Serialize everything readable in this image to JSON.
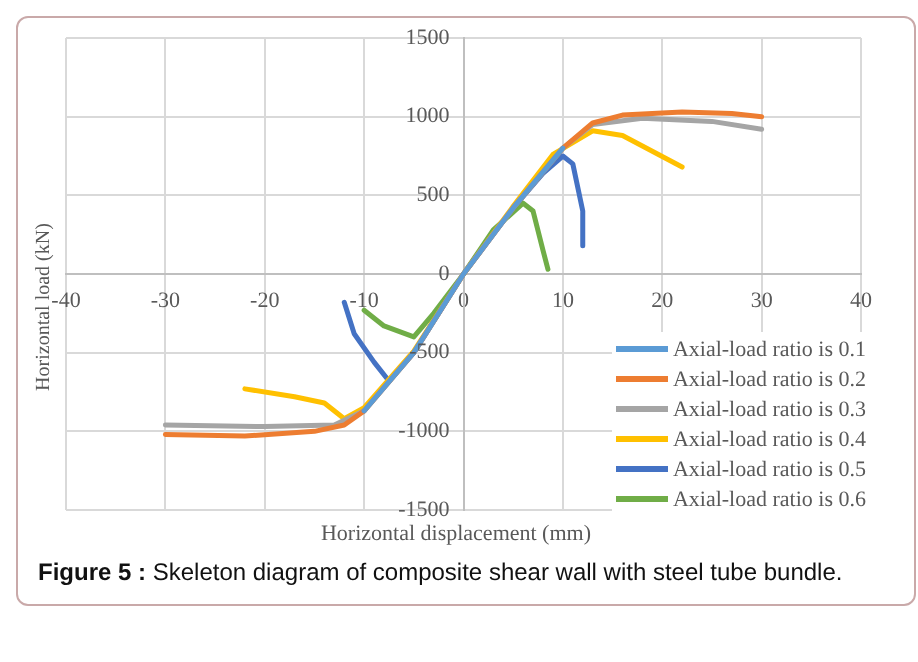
{
  "chart_data": {
    "type": "line",
    "title": "Figure 5 : Skeleton diagram of composite shear wall with steel tube bundle.",
    "xlabel": "Horizontal displacement (mm)",
    "ylabel": "Horizontal load (kN)",
    "xlim": [
      -40,
      40
    ],
    "xticks": [
      -40,
      -30,
      -20,
      -10,
      0,
      10,
      20,
      30,
      40
    ],
    "ylim": [
      -1500,
      1500
    ],
    "yticks": [
      -1500,
      -1000,
      -500,
      0,
      500,
      1000,
      1500
    ],
    "grid": true,
    "legend": "bottom right",
    "marker": "none",
    "line_style": "solid",
    "series": [
      {
        "name": "Axial-load ratio is 0.1",
        "color": "#5b9bd5",
        "x": [
          -10,
          -5,
          0,
          5,
          10
        ],
        "values": [
          -870,
          -500,
          0,
          420,
          800
        ]
      },
      {
        "name": "Axial-load ratio is 0.2",
        "color": "#ed7d31",
        "x": [
          -30,
          -22,
          -15,
          -12,
          -10,
          -5,
          0,
          5,
          10,
          13,
          16,
          22,
          27,
          30
        ],
        "values": [
          -1020,
          -1030,
          -1000,
          -960,
          -870,
          -500,
          0,
          420,
          800,
          960,
          1010,
          1030,
          1020,
          1000
        ]
      },
      {
        "name": "Axial-load ratio is 0.3",
        "color": "#a5a5a5",
        "x": [
          -30,
          -20,
          -13,
          -10,
          -5,
          0,
          5,
          10,
          13,
          18,
          25,
          30
        ],
        "values": [
          -960,
          -970,
          -960,
          -870,
          -500,
          0,
          420,
          800,
          950,
          990,
          970,
          920
        ]
      },
      {
        "name": "Axial-load ratio is 0.4",
        "color": "#ffc000",
        "x": [
          -22,
          -17,
          -14,
          -12,
          -10,
          -5,
          0,
          5,
          9,
          13,
          16,
          22
        ],
        "values": [
          -730,
          -780,
          -820,
          -920,
          -850,
          -490,
          0,
          430,
          760,
          910,
          880,
          680
        ]
      },
      {
        "name": "Axial-load ratio is 0.5",
        "color": "#4472c4",
        "x": [
          -12,
          -11,
          -9,
          -7.5,
          -5,
          0,
          5,
          8,
          10,
          11,
          12,
          12
        ],
        "values": [
          -180,
          -380,
          -560,
          -680,
          -500,
          0,
          420,
          640,
          750,
          700,
          400,
          180
        ]
      },
      {
        "name": "Axial-load ratio is 0.6",
        "color": "#70ad47",
        "x": [
          -10,
          -8,
          -5,
          -3,
          0,
          3,
          6,
          7,
          8,
          8.5
        ],
        "values": [
          -230,
          -330,
          -400,
          -250,
          0,
          280,
          450,
          400,
          150,
          30
        ]
      }
    ]
  }
}
